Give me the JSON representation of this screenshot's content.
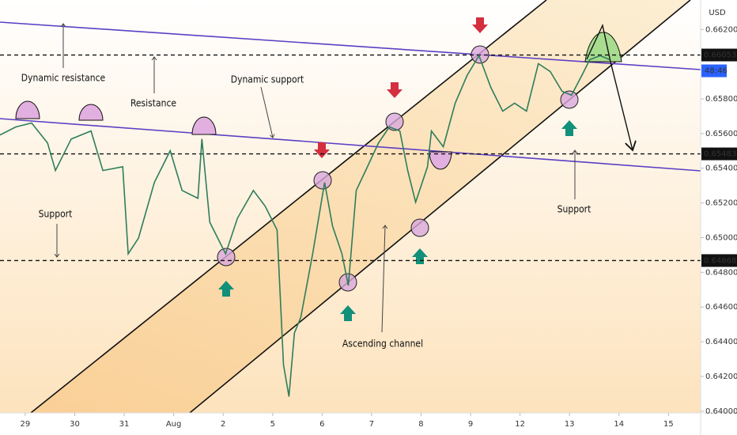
{
  "chart_data": {
    "type": "line",
    "color": "#2e7d5b",
    "x": [
      -0.51,
      -0.19,
      0.13,
      0.45,
      0.61,
      0.93,
      1.33,
      1.57,
      1.97,
      2.08,
      2.29,
      2.61,
      2.93,
      3.17,
      3.49,
      3.57,
      3.73,
      4.05,
      4.29,
      4.61,
      4.85,
      5.09,
      5.22,
      5.33,
      5.44,
      5.57,
      5.81,
      6.05,
      6.21,
      6.4,
      6.53,
      6.69,
      6.88,
      7.14,
      7.36,
      7.57,
      7.73,
      7.89,
      8.13,
      8.21,
      8.45,
      8.69,
      8.93,
      9.17,
      9.41,
      9.65,
      9.89,
      10.13,
      10.37,
      10.61,
      10.85,
      11.04,
      11.25,
      11.41,
      11.62,
      11.81
    ],
    "values": [
      0.65592,
      0.65638,
      0.65661,
      0.65546,
      0.65387,
      0.65569,
      0.65615,
      0.65387,
      0.65409,
      0.64907,
      0.64998,
      0.65318,
      0.65501,
      0.65272,
      0.65227,
      0.65569,
      0.65089,
      0.64907,
      0.65112,
      0.65272,
      0.65181,
      0.65044,
      0.64267,
      0.64084,
      0.6445,
      0.64541,
      0.64907,
      0.65318,
      0.65067,
      0.64907,
      0.64724,
      0.65272,
      0.65387,
      0.65546,
      0.65638,
      0.65615,
      0.65387,
      0.65204,
      0.65409,
      0.65615,
      0.65524,
      0.65775,
      0.65935,
      0.66049,
      0.65866,
      0.65729,
      0.65775,
      0.65729,
      0.66003,
      0.65958,
      0.65844,
      0.65821,
      0.65935,
      0.66026,
      0.66049,
      0.66026
    ],
    "xlim": [
      -0.51,
      13.65
    ],
    "xticks": [
      {
        "value": 0,
        "label": "29"
      },
      {
        "value": 1,
        "label": "30"
      },
      {
        "value": 2,
        "label": "31"
      },
      {
        "value": 3,
        "label": "Aug"
      },
      {
        "value": 4,
        "label": "2"
      },
      {
        "value": 5,
        "label": "5"
      },
      {
        "value": 6,
        "label": "6"
      },
      {
        "value": 7,
        "label": "7"
      },
      {
        "value": 8,
        "label": "8"
      },
      {
        "value": 9,
        "label": "9"
      },
      {
        "value": 10,
        "label": "12"
      },
      {
        "value": 11,
        "label": "13"
      },
      {
        "value": 12,
        "label": "14"
      },
      {
        "value": 13,
        "label": "15"
      }
    ],
    "ylim": [
      0.6399,
      0.6637
    ],
    "yticks": [
      {
        "value": 0.662,
        "label": "0.66200"
      },
      {
        "value": 0.658,
        "label": "0.65800"
      },
      {
        "value": 0.656,
        "label": "0.65600"
      },
      {
        "value": 0.654,
        "label": "0.65400"
      },
      {
        "value": 0.652,
        "label": "0.65200"
      },
      {
        "value": 0.65,
        "label": "0.65000"
      },
      {
        "value": 0.648,
        "label": "0.64800"
      },
      {
        "value": 0.646,
        "label": "0.64600"
      },
      {
        "value": 0.644,
        "label": "0.64400"
      },
      {
        "value": 0.642,
        "label": "0.64200"
      },
      {
        "value": 0.64,
        "label": "0.64000"
      }
    ],
    "grid": false,
    "levels": [
      0.66053,
      0.65483,
      0.64868
    ],
    "currency": "USD",
    "countdown": "48:46",
    "annotations": [
      "Dynamic resistance",
      "Resistance",
      "Dynamic support",
      "Support",
      "Support",
      "Ascending channel"
    ]
  }
}
